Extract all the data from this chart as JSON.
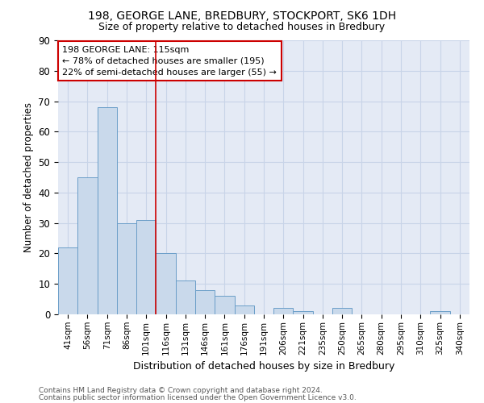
{
  "title1": "198, GEORGE LANE, BREDBURY, STOCKPORT, SK6 1DH",
  "title2": "Size of property relative to detached houses in Bredbury",
  "xlabel": "Distribution of detached houses by size in Bredbury",
  "ylabel": "Number of detached properties",
  "categories": [
    "41sqm",
    "56sqm",
    "71sqm",
    "86sqm",
    "101sqm",
    "116sqm",
    "131sqm",
    "146sqm",
    "161sqm",
    "176sqm",
    "191sqm",
    "206sqm",
    "221sqm",
    "235sqm",
    "250sqm",
    "265sqm",
    "280sqm",
    "295sqm",
    "310sqm",
    "325sqm",
    "340sqm"
  ],
  "values": [
    22,
    45,
    68,
    30,
    31,
    20,
    11,
    8,
    6,
    3,
    0,
    2,
    1,
    0,
    2,
    0,
    0,
    0,
    0,
    1,
    0
  ],
  "bar_color": "#c9d9eb",
  "bar_edge_color": "#6b9ec8",
  "annotation_title": "198 GEORGE LANE: 115sqm",
  "annotation_line1": "← 78% of detached houses are smaller (195)",
  "annotation_line2": "22% of semi-detached houses are larger (55) →",
  "annotation_box_color": "#ffffff",
  "annotation_box_edge_color": "#cc0000",
  "vline_color": "#cc0000",
  "grid_color": "#c8d4e8",
  "background_color": "#e4eaf5",
  "ylim": [
    0,
    90
  ],
  "footer1": "Contains HM Land Registry data © Crown copyright and database right 2024.",
  "footer2": "Contains public sector information licensed under the Open Government Licence v3.0."
}
